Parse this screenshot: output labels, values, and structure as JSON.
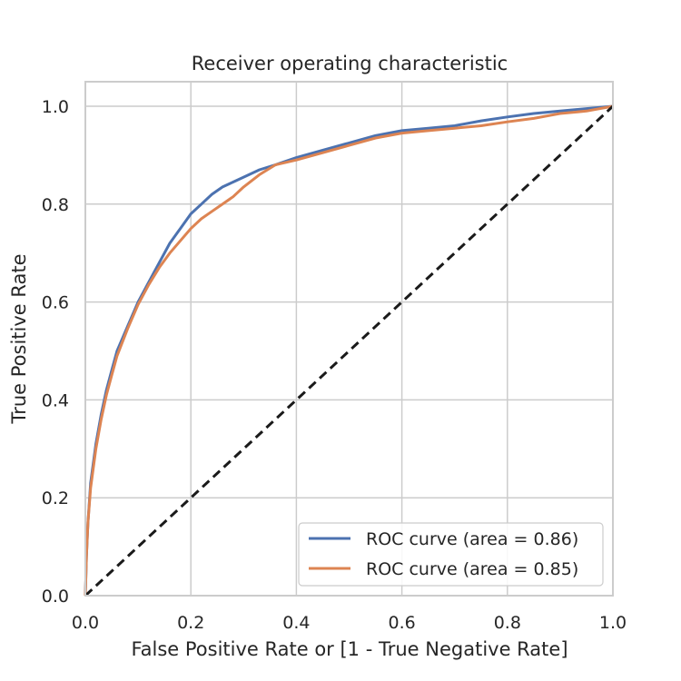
{
  "chart_data": {
    "type": "line",
    "title": "Receiver operating characteristic",
    "xlabel": "False Positive Rate or [1 - True Negative Rate]",
    "ylabel": "True Positive Rate",
    "xlim": [
      0.0,
      1.0
    ],
    "ylim": [
      0.0,
      1.05
    ],
    "xticks": [
      0.0,
      0.2,
      0.4,
      0.6,
      0.8,
      1.0
    ],
    "yticks": [
      0.0,
      0.2,
      0.4,
      0.6,
      0.8,
      1.0
    ],
    "xtick_labels": [
      "0.0",
      "0.2",
      "0.4",
      "0.6",
      "0.8",
      "1.0"
    ],
    "ytick_labels": [
      "0.0",
      "0.2",
      "0.4",
      "0.6",
      "0.8",
      "1.0"
    ],
    "grid": true,
    "legend_position": "lower-right",
    "series": [
      {
        "name": "ROC curve (area = 0.86)",
        "color": "#4c72b0",
        "x": [
          0.0,
          0.002,
          0.005,
          0.01,
          0.015,
          0.02,
          0.03,
          0.04,
          0.05,
          0.06,
          0.08,
          0.1,
          0.12,
          0.14,
          0.16,
          0.18,
          0.2,
          0.22,
          0.24,
          0.26,
          0.28,
          0.3,
          0.33,
          0.36,
          0.4,
          0.45,
          0.5,
          0.55,
          0.6,
          0.65,
          0.7,
          0.75,
          0.8,
          0.85,
          0.9,
          0.95,
          1.0
        ],
        "y": [
          0.0,
          0.08,
          0.15,
          0.23,
          0.27,
          0.31,
          0.37,
          0.42,
          0.46,
          0.5,
          0.55,
          0.6,
          0.64,
          0.68,
          0.72,
          0.75,
          0.78,
          0.8,
          0.82,
          0.835,
          0.845,
          0.855,
          0.87,
          0.88,
          0.895,
          0.91,
          0.925,
          0.94,
          0.95,
          0.955,
          0.96,
          0.97,
          0.978,
          0.985,
          0.99,
          0.995,
          1.0
        ]
      },
      {
        "name": "ROC curve (area = 0.85)",
        "color": "#dd8452",
        "x": [
          0.0,
          0.002,
          0.005,
          0.01,
          0.015,
          0.02,
          0.03,
          0.04,
          0.05,
          0.06,
          0.08,
          0.1,
          0.12,
          0.14,
          0.16,
          0.18,
          0.2,
          0.22,
          0.24,
          0.26,
          0.28,
          0.3,
          0.33,
          0.36,
          0.4,
          0.45,
          0.5,
          0.55,
          0.6,
          0.65,
          0.7,
          0.75,
          0.8,
          0.85,
          0.9,
          0.95,
          1.0
        ],
        "y": [
          0.0,
          0.08,
          0.15,
          0.22,
          0.26,
          0.3,
          0.36,
          0.41,
          0.45,
          0.49,
          0.545,
          0.595,
          0.635,
          0.67,
          0.7,
          0.725,
          0.75,
          0.77,
          0.785,
          0.8,
          0.815,
          0.835,
          0.86,
          0.88,
          0.89,
          0.905,
          0.92,
          0.935,
          0.945,
          0.95,
          0.955,
          0.96,
          0.968,
          0.975,
          0.985,
          0.99,
          1.0
        ]
      },
      {
        "name": "",
        "color": "#1a1a1a",
        "dashed": true,
        "x": [
          0.0,
          1.0
        ],
        "y": [
          0.0,
          1.0
        ]
      }
    ]
  }
}
